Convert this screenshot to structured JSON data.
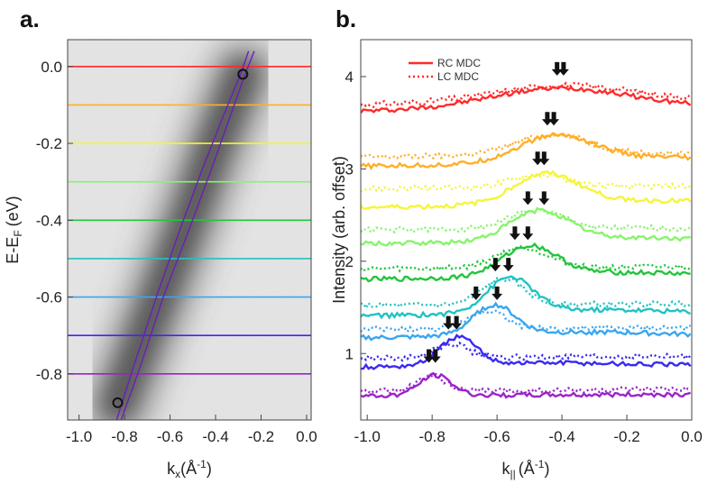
{
  "chart_data": [
    {
      "panel": "a.",
      "type": "heatmap",
      "title": "",
      "xlabel": "k",
      "xlabel_sub": "x",
      "xlabel_unit": "(Å",
      "xlabel_unit_sup": "-1",
      "xlabel_close": ")",
      "ylabel": "E-E",
      "ylabel_sub": "F",
      "ylabel_unit": "(eV)",
      "xlim": [
        -1.05,
        0.02
      ],
      "ylim": [
        -0.92,
        0.07
      ],
      "xticks": [
        -1.0,
        -0.8,
        -0.6,
        -0.4,
        -0.2,
        0.0
      ],
      "xtick_labels": [
        "-1.0",
        "-0.8",
        "-0.6",
        "-0.4",
        "-0.2",
        "0.0"
      ],
      "yticks": [
        0.0,
        -0.2,
        -0.4,
        -0.6,
        -0.8
      ],
      "ytick_labels": [
        "0.0",
        "-0.2",
        "-0.4",
        "-0.6",
        "-0.8"
      ],
      "colormap": "grayscale intensity, dark band along the dispersion",
      "band_center": [
        [
          -0.83,
          -0.88
        ],
        [
          -0.66,
          -0.62
        ],
        [
          -0.52,
          -0.4
        ],
        [
          -0.4,
          -0.2
        ],
        [
          -0.28,
          -0.02
        ]
      ],
      "cuts": [
        {
          "energy": 0.0,
          "color": "#ff2a2a"
        },
        {
          "energy": -0.1,
          "color": "#ffae2a"
        },
        {
          "energy": -0.2,
          "color": "#f5f53a"
        },
        {
          "energy": -0.3,
          "color": "#86f56b"
        },
        {
          "energy": -0.4,
          "color": "#22c53d"
        },
        {
          "energy": -0.5,
          "color": "#22c2c2"
        },
        {
          "energy": -0.6,
          "color": "#3aa6ef"
        },
        {
          "energy": -0.7,
          "color": "#3a2af0"
        },
        {
          "energy": -0.8,
          "color": "#9a24c8"
        }
      ],
      "fit_curves": [
        {
          "color": "#6a1fb8",
          "points": [
            [
              -0.835,
              -0.92
            ],
            [
              -0.76,
              -0.78
            ],
            [
              -0.66,
              -0.6
            ],
            [
              -0.56,
              -0.43
            ],
            [
              -0.46,
              -0.27
            ],
            [
              -0.36,
              -0.12
            ],
            [
              -0.29,
              -0.02
            ],
            [
              -0.255,
              0.04
            ]
          ]
        },
        {
          "color": "#6a1fb8",
          "points": [
            [
              -0.815,
              -0.92
            ],
            [
              -0.73,
              -0.78
            ],
            [
              -0.63,
              -0.6
            ],
            [
              -0.52,
              -0.43
            ],
            [
              -0.42,
              -0.27
            ],
            [
              -0.33,
              -0.12
            ],
            [
              -0.27,
              -0.02
            ],
            [
              -0.23,
              0.04
            ]
          ]
        }
      ],
      "markers": [
        {
          "x": -0.28,
          "y": -0.02
        },
        {
          "x": -0.83,
          "y": -0.875
        }
      ]
    },
    {
      "panel": "b.",
      "type": "line",
      "title": "",
      "xlabel": "k",
      "xlabel_sub": "||",
      "xlabel_unit": "(Å",
      "xlabel_unit_sup": "-1",
      "xlabel_close": ")",
      "ylabel": "Intensity (arb. offset)",
      "xlim": [
        -1.02,
        0.0
      ],
      "ylim": [
        0.28,
        4.4
      ],
      "xticks": [
        -1.0,
        -0.8,
        -0.6,
        -0.4,
        -0.2,
        0.0
      ],
      "xtick_labels": [
        "-1.0",
        "-0.8",
        "-0.6",
        "-0.4",
        "-0.2",
        "0.0"
      ],
      "yticks": [
        1,
        2,
        3,
        4
      ],
      "ytick_labels": [
        "1",
        "2",
        "3",
        "4"
      ],
      "legend": [
        {
          "label": "RC MDC",
          "style": "solid",
          "color": "#ff2a2a"
        },
        {
          "label": "LC MDC",
          "style": "dotted",
          "color": "#ff2a2a"
        }
      ],
      "legend_position": "top-left",
      "series": [
        {
          "energy": 0.0,
          "color": "#ff2a2a",
          "rc": {
            "base": 3.65,
            "peak_k": -0.41,
            "amp": 0.22,
            "width": 0.3,
            "slope": 0.05,
            "tail": 0.0
          },
          "lc": {
            "base": 3.72,
            "peak_k": -0.4,
            "amp": 0.18,
            "width": 0.3,
            "slope": 0.05,
            "tail": 0.0
          },
          "arrows": [
            -0.415,
            -0.395
          ],
          "arrow_y": 4.02
        },
        {
          "energy": -0.1,
          "color": "#ffae2a",
          "rc": {
            "base": 3.05,
            "peak_k": -0.42,
            "amp": 0.28,
            "width": 0.16,
            "slope": 0.04,
            "tail": 0.06
          },
          "lc": {
            "base": 3.15,
            "peak_k": -0.43,
            "amp": 0.22,
            "width": 0.16,
            "slope": 0.04,
            "tail": 0.0
          },
          "arrows": [
            -0.445,
            -0.425
          ],
          "arrow_y": 3.48
        },
        {
          "energy": -0.2,
          "color": "#f5f53a",
          "rc": {
            "base": 2.6,
            "peak_k": -0.45,
            "amp": 0.32,
            "width": 0.14,
            "slope": 0.03,
            "tail": 0.05
          },
          "lc": {
            "base": 2.8,
            "peak_k": -0.47,
            "amp": 0.14,
            "width": 0.12,
            "slope": 0.03,
            "tail": 0.0
          },
          "arrows": [
            -0.475,
            -0.455
          ],
          "arrow_y": 3.05
        },
        {
          "energy": -0.3,
          "color": "#86f56b",
          "rc": {
            "base": 2.2,
            "peak_k": -0.47,
            "amp": 0.32,
            "width": 0.13,
            "slope": 0.02,
            "tail": 0.05
          },
          "lc": {
            "base": 2.35,
            "peak_k": -0.48,
            "amp": 0.2,
            "width": 0.12,
            "slope": 0.02,
            "tail": 0.0
          },
          "arrows": [
            -0.505,
            -0.455
          ],
          "arrow_y": 2.62
        },
        {
          "energy": -0.4,
          "color": "#22c53d",
          "rc": {
            "base": 1.82,
            "peak_k": -0.5,
            "amp": 0.32,
            "width": 0.12,
            "slope": 0.03,
            "tail": 0.05
          },
          "lc": {
            "base": 1.93,
            "peak_k": -0.52,
            "amp": 0.22,
            "width": 0.11,
            "slope": 0.02,
            "tail": 0.0
          },
          "arrows": [
            -0.545,
            -0.505
          ],
          "arrow_y": 2.24
        },
        {
          "energy": -0.5,
          "color": "#22c2c2",
          "rc": {
            "base": 1.42,
            "peak_k": -0.56,
            "amp": 0.38,
            "width": 0.1,
            "slope": 0.02,
            "tail": 0.05
          },
          "lc": {
            "base": 1.53,
            "peak_k": -0.58,
            "amp": 0.28,
            "width": 0.09,
            "slope": 0.02,
            "tail": 0.0
          },
          "arrows": [
            -0.605,
            -0.565
          ],
          "arrow_y": 1.9
        },
        {
          "energy": -0.6,
          "color": "#3aa6ef",
          "rc": {
            "base": 1.18,
            "peak_k": -0.61,
            "amp": 0.32,
            "width": 0.09,
            "slope": 0.02,
            "tail": 0.05
          },
          "lc": {
            "base": 1.27,
            "peak_k": -0.63,
            "amp": 0.2,
            "width": 0.08,
            "slope": 0.02,
            "tail": 0.0
          },
          "arrows": [
            -0.665,
            -0.6
          ],
          "arrow_y": 1.59
        },
        {
          "energy": -0.7,
          "color": "#3a2af0",
          "rc": {
            "base": 0.86,
            "peak_k": -0.72,
            "amp": 0.3,
            "width": 0.08,
            "slope": 0.02,
            "tail": 0.04
          },
          "lc": {
            "base": 0.96,
            "peak_k": -0.74,
            "amp": 0.15,
            "width": 0.07,
            "slope": 0.02,
            "tail": 0.0
          },
          "arrows": [
            -0.75,
            -0.725
          ],
          "arrow_y": 1.27
        },
        {
          "energy": -0.8,
          "color": "#9a24c8",
          "rc": {
            "base": 0.55,
            "peak_k": -0.79,
            "amp": 0.22,
            "width": 0.07,
            "slope": 0.02,
            "tail": 0.0
          },
          "lc": {
            "base": 0.6,
            "peak_k": -0.8,
            "amp": 0.16,
            "width": 0.06,
            "slope": 0.02,
            "tail": 0.0
          },
          "arrows": [
            -0.81,
            -0.79
          ],
          "arrow_y": 0.91
        }
      ]
    }
  ]
}
